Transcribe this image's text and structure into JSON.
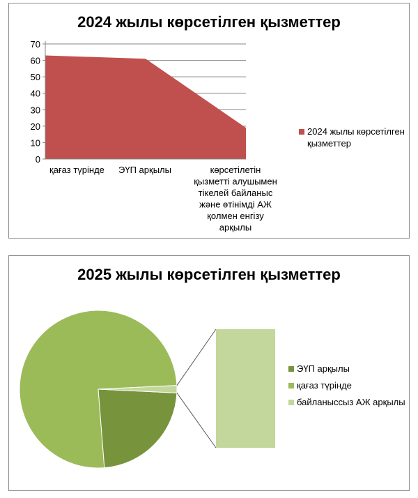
{
  "chart_data": [
    {
      "type": "area",
      "title": "2024 жылы көрсетілген қызметтер",
      "categories": [
        "қағаз түрінде",
        "ЭҮП арқылы",
        "көрсетілетін қызметті алушымен тікелей байланыс және өтінімді АЖ қолмен енгізу арқылы"
      ],
      "category_lines": [
        [
          "қағаз түрінде"
        ],
        [
          "ЭҮП арқылы"
        ],
        [
          "көрсетілетін",
          "қызметті алушымен",
          "тікелей байланыс",
          "және өтінімді АЖ",
          "қолмен енгізу",
          "арқылы"
        ]
      ],
      "series": [
        {
          "name": "2024 жылы көрсетілген қызметтер",
          "values": [
            63,
            61,
            19
          ]
        }
      ],
      "legend_lines": [
        "2024 жылы көрсетілген",
        "қызметтер"
      ],
      "ylim": [
        0,
        70
      ],
      "yticks": [
        0,
        10,
        20,
        30,
        40,
        50,
        60,
        70
      ],
      "grid": true,
      "legend_position": "right",
      "colors": {
        "fill": "#C0504D",
        "grid": "#868686",
        "axis": "#868686"
      }
    },
    {
      "type": "pie",
      "subtype": "pie-of-pie",
      "title": "2025 жылы көрсетілген қызметтер",
      "labels": [
        "ЭҮП арқылы",
        "қағаз түрінде",
        "байланыссыз АЖ арқылы"
      ],
      "values": [
        23,
        75.5,
        1.5
      ],
      "colors": [
        "#77933C",
        "#9BBB59",
        "#C3D69B"
      ],
      "legend_position": "right"
    }
  ]
}
